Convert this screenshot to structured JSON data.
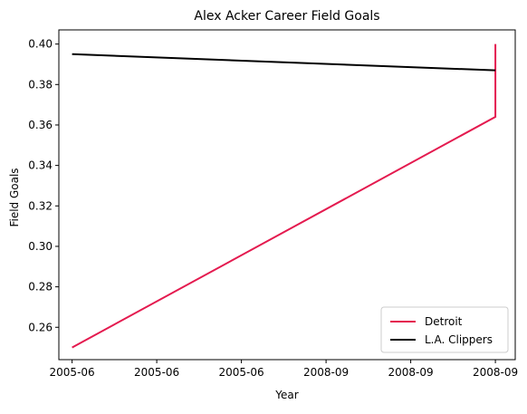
{
  "colors": {
    "detroit": "#e41a4f",
    "clippers": "#000000",
    "axis": "#000000",
    "legend_border": "#cccccc"
  },
  "chart_data": {
    "type": "line",
    "title": "Alex Acker Career Field Goals",
    "xlabel": "Year",
    "ylabel": "Field Goals",
    "x_tick_labels": [
      "2005-06",
      "2005-06",
      "2005-06",
      "2008-09",
      "2008-09",
      "2008-09"
    ],
    "y_ticks": [
      0.26,
      0.28,
      0.3,
      0.32,
      0.34,
      0.36,
      0.38,
      0.4
    ],
    "y_tick_labels": [
      "0.26",
      "0.28",
      "0.30",
      "0.32",
      "0.34",
      "0.36",
      "0.38",
      "0.40"
    ],
    "xlim": [
      2005.4,
      2008.85
    ],
    "ylim": [
      0.244,
      0.407
    ],
    "grid": false,
    "legend_position": "lower-right",
    "series": [
      {
        "name": "Detroit",
        "color_key": "detroit",
        "points": [
          {
            "x": 2005.5,
            "y": 0.25
          },
          {
            "x": 2008.7,
            "y": 0.364
          },
          {
            "x": 2008.7,
            "y": 0.4
          }
        ]
      },
      {
        "name": "L.A. Clippers",
        "color_key": "clippers",
        "points": [
          {
            "x": 2005.5,
            "y": 0.395
          },
          {
            "x": 2008.7,
            "y": 0.387
          }
        ]
      }
    ]
  }
}
